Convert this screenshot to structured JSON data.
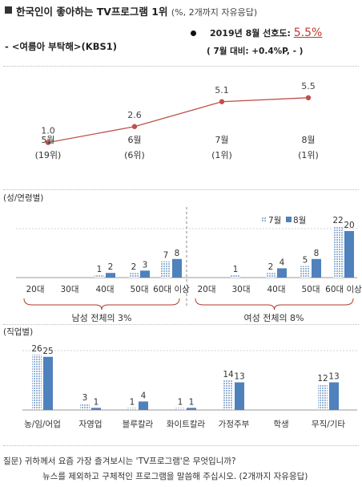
{
  "header": {
    "title": "한국인이 좋아하는 TV프로그램 1위",
    "title_note": "(%, 2개까지 자유응답)",
    "program": "- <여름아 부탁해>(KBS1)",
    "pref_label": "2019년 8월 선호도:",
    "pref_value": "5.5%",
    "pref_change": "( 7월 대비: +0.4%P,  - )"
  },
  "footnote": {
    "line1": "질문) 귀하께서 요즘 가장 즐겨보시는 'TV프로그램'은 무엇입니까?",
    "line2": "뉴스를 제외하고 구체적인 프로그램을 말씀해 주십시오. (2개까지 자유응답)"
  },
  "colors": {
    "line": "#c0504d",
    "bar_jul": "#9bb5d6",
    "bar_aug": "#4f81bd"
  },
  "chart_data": [
    {
      "type": "line",
      "categories": [
        "5월",
        "6월",
        "7월",
        "8월"
      ],
      "rank_labels": [
        "(19위)",
        "(6위)",
        "(1위)",
        "(1위)"
      ],
      "values": [
        1.0,
        2.6,
        5.1,
        5.5
      ],
      "value_labels": [
        "1.0",
        "2.6",
        "5.1",
        "5.5"
      ]
    },
    {
      "type": "bar",
      "label": "(성/연령별)",
      "legend": [
        "7월",
        "8월"
      ],
      "categories": [
        "20대",
        "30대",
        "40대",
        "50대",
        "60대 이상",
        "20대",
        "30대",
        "40대",
        "50대",
        "60대 이상"
      ],
      "series": [
        {
          "name": "7월",
          "values": [
            0,
            0,
            1,
            2,
            7,
            0,
            1,
            2,
            5,
            22
          ]
        },
        {
          "name": "8월",
          "values": [
            0,
            0,
            2,
            3,
            8,
            0,
            0,
            4,
            8,
            20
          ]
        }
      ],
      "value_labels": [
        [
          "",
          "",
          "1",
          "2",
          "7",
          "",
          "1",
          "2",
          "5",
          "22"
        ],
        [
          "",
          "",
          "2",
          "3",
          "8",
          "",
          "",
          "4",
          "8",
          "20"
        ]
      ],
      "groups": [
        "남성 전체의 3%",
        "여성 전체의 8%"
      ]
    },
    {
      "type": "bar",
      "label": "(직업별)",
      "categories": [
        "농/임/어업",
        "자영업",
        "블루칼라",
        "화이트칼라",
        "가정주부",
        "학생",
        "무직/기타"
      ],
      "series": [
        {
          "name": "7월",
          "values": [
            26,
            3,
            1,
            1,
            14,
            0,
            12
          ]
        },
        {
          "name": "8월",
          "values": [
            25,
            1,
            4,
            1,
            13,
            0,
            13
          ]
        }
      ],
      "value_labels": [
        [
          "26",
          "3",
          "1",
          "1",
          "14",
          "",
          "12"
        ],
        [
          "25",
          "1",
          "4",
          "1",
          "13",
          "",
          "13"
        ]
      ]
    }
  ]
}
